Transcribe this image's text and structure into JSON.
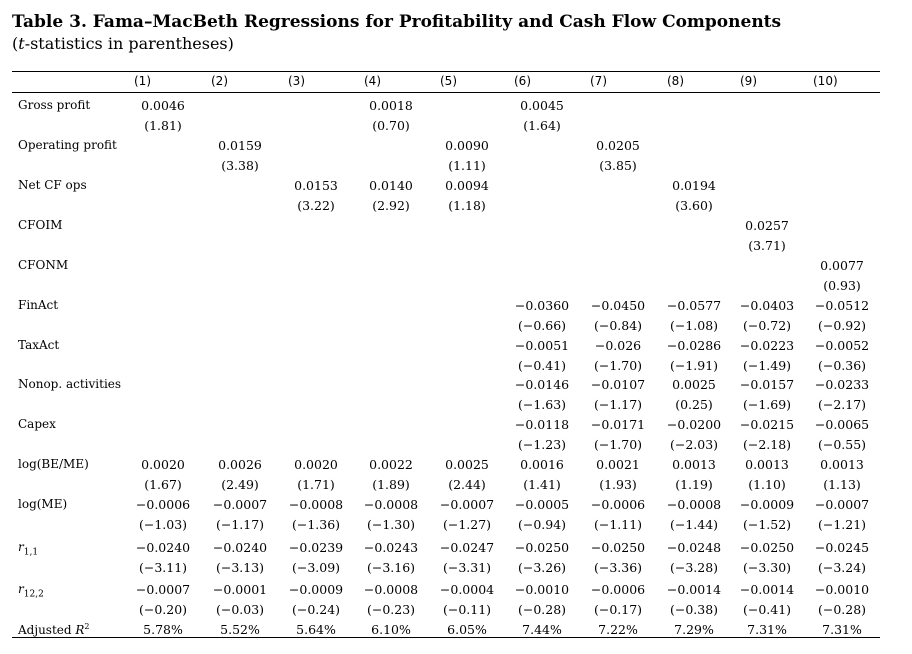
{
  "title": "Table 3. Fama–MacBeth Regressions for Profitability and Cash Flow Components",
  "subtitle_prefix": "(",
  "subtitle_italic": "t",
  "subtitle_rest": "-statistics in parentheses)",
  "columns": [
    "(1)",
    "(2)",
    "(3)",
    "(4)",
    "(5)",
    "(6)",
    "(7)",
    "(8)",
    "(9)",
    "(10)"
  ],
  "rows": [
    {
      "label": "Gross profit",
      "coef": [
        "0.0046",
        "",
        "",
        "0.0018",
        "",
        "0.0045",
        "",
        "",
        "",
        ""
      ],
      "tstat": [
        "(1.81)",
        "",
        "",
        "(0.70)",
        "",
        "(1.64)",
        "",
        "",
        "",
        ""
      ]
    },
    {
      "label": "Operating profit",
      "coef": [
        "",
        "0.0159",
        "",
        "",
        "0.0090",
        "",
        "0.0205",
        "",
        "",
        ""
      ],
      "tstat": [
        "",
        "(3.38)",
        "",
        "",
        "(1.11)",
        "",
        "(3.85)",
        "",
        "",
        ""
      ]
    },
    {
      "label": "Net CF ops",
      "coef": [
        "",
        "",
        "0.0153",
        "0.0140",
        "0.0094",
        "",
        "",
        "0.0194",
        "",
        ""
      ],
      "tstat": [
        "",
        "",
        "(3.22)",
        "(2.92)",
        "(1.18)",
        "",
        "",
        "(3.60)",
        "",
        ""
      ]
    },
    {
      "label": "CFOIM",
      "coef": [
        "",
        "",
        "",
        "",
        "",
        "",
        "",
        "",
        "0.0257",
        ""
      ],
      "tstat": [
        "",
        "",
        "",
        "",
        "",
        "",
        "",
        "",
        "(3.71)",
        ""
      ]
    },
    {
      "label": "CFONM",
      "coef": [
        "",
        "",
        "",
        "",
        "",
        "",
        "",
        "",
        "",
        "0.0077"
      ],
      "tstat": [
        "",
        "",
        "",
        "",
        "",
        "",
        "",
        "",
        "",
        "(0.93)"
      ]
    },
    {
      "label": "FinAct",
      "coef": [
        "",
        "",
        "",
        "",
        "",
        "−0.0360",
        "−0.0450",
        "−0.0577",
        "−0.0403",
        "−0.0512"
      ],
      "tstat": [
        "",
        "",
        "",
        "",
        "",
        "(−0.66)",
        "(−0.84)",
        "(−1.08)",
        "(−0.72)",
        "(−0.92)"
      ]
    },
    {
      "label": "TaxAct",
      "coef": [
        "",
        "",
        "",
        "",
        "",
        "−0.0051",
        "−0.026",
        "−0.0286",
        "−0.0223",
        "−0.0052"
      ],
      "tstat": [
        "",
        "",
        "",
        "",
        "",
        "(−0.41)",
        "(−1.70)",
        "(−1.91)",
        "(−1.49)",
        "(−0.36)"
      ]
    },
    {
      "label": "Nonop. activities",
      "coef": [
        "",
        "",
        "",
        "",
        "",
        "−0.0146",
        "−0.0107",
        "0.0025",
        "−0.0157",
        "−0.0233"
      ],
      "tstat": [
        "",
        "",
        "",
        "",
        "",
        "(−1.63)",
        "(−1.17)",
        "(0.25)",
        "(−1.69)",
        "(−2.17)"
      ]
    },
    {
      "label": "Capex",
      "coef": [
        "",
        "",
        "",
        "",
        "",
        "−0.0118",
        "−0.0171",
        "−0.0200",
        "−0.0215",
        "−0.0065"
      ],
      "tstat": [
        "",
        "",
        "",
        "",
        "",
        "(−1.23)",
        "(−1.70)",
        "(−2.03)",
        "(−2.18)",
        "(−0.55)"
      ]
    },
    {
      "label": "log(BE/ME)",
      "coef": [
        "0.0020",
        "0.0026",
        "0.0020",
        "0.0022",
        "0.0025",
        "0.0016",
        "0.0021",
        "0.0013",
        "0.0013",
        "0.0013"
      ],
      "tstat": [
        "(1.67)",
        "(2.49)",
        "(1.71)",
        "(1.89)",
        "(2.44)",
        "(1.41)",
        "(1.93)",
        "(1.19)",
        "(1.10)",
        "(1.13)"
      ]
    },
    {
      "label": "log(ME)",
      "coef": [
        "−0.0006",
        "−0.0007",
        "−0.0008",
        "−0.0008",
        "−0.0007",
        "−0.0005",
        "−0.0006",
        "−0.0008",
        "−0.0009",
        "−0.0007"
      ],
      "tstat": [
        "(−1.03)",
        "(−1.17)",
        "(−1.36)",
        "(−1.30)",
        "(−1.27)",
        "(−0.94)",
        "(−1.11)",
        "(−1.44)",
        "(−1.52)",
        "(−1.21)"
      ]
    },
    {
      "label_sym": "r",
      "label_sub": "1,1",
      "coef": [
        "−0.0240",
        "−0.0240",
        "−0.0239",
        "−0.0243",
        "−0.0247",
        "−0.0250",
        "−0.0250",
        "−0.0248",
        "−0.0250",
        "−0.0245"
      ],
      "tstat": [
        "(−3.11)",
        "(−3.13)",
        "(−3.09)",
        "(−3.16)",
        "(−3.31)",
        "(−3.26)",
        "(−3.36)",
        "(−3.28)",
        "(−3.30)",
        "(−3.24)"
      ]
    },
    {
      "label_sym": "r",
      "label_sub": "12,2",
      "coef": [
        "−0.0007",
        "−0.0001",
        "−0.0009",
        "−0.0008",
        "−0.0004",
        "−0.0010",
        "−0.0006",
        "−0.0014",
        "−0.0014",
        "−0.0010"
      ],
      "tstat": [
        "(−0.20)",
        "(−0.03)",
        "(−0.24)",
        "(−0.23)",
        "(−0.11)",
        "(−0.28)",
        "(−0.17)",
        "(−0.38)",
        "(−0.41)",
        "(−0.28)"
      ]
    }
  ],
  "adj_r2": {
    "label_text": "Adjusted ",
    "label_sym": "R",
    "label_sup": "2",
    "values": [
      "5.78%",
      "5.52%",
      "5.64%",
      "6.10%",
      "6.05%",
      "7.44%",
      "7.22%",
      "7.29%",
      "7.31%",
      "7.31%"
    ]
  }
}
